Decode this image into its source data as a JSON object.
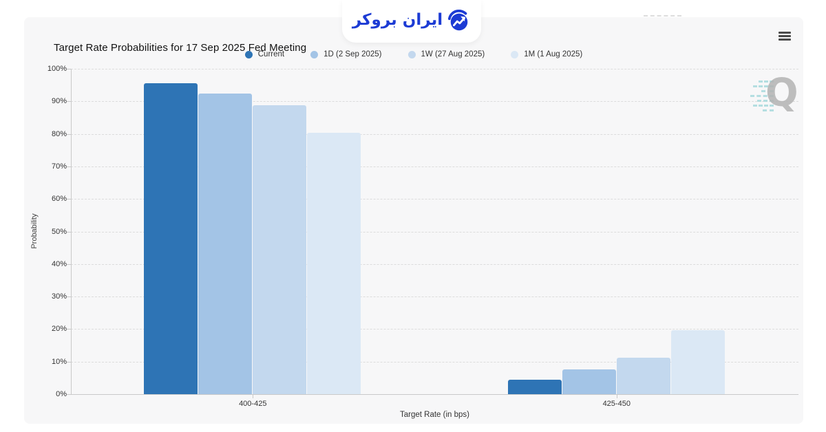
{
  "logo": {
    "text": "ایران بروکر",
    "color": "#1c3bd4"
  },
  "icons": {
    "menu": "hamburger",
    "logo_mark": "circular-trend-arrow",
    "watermark_letter": "Q"
  },
  "watermark": {
    "letter": "Q"
  },
  "colors": {
    "page_bg": "#ffffff",
    "card_bg": "#f7f7f8",
    "grid": "#dcdcdc",
    "axis": "#c9c9c9",
    "title_text": "#111111",
    "label_text": "#333333"
  },
  "chart_data": {
    "type": "bar",
    "title": "Target Rate Probabilities for 17 Sep 2025 Fed Meeting",
    "xlabel": "Target Rate (in bps)",
    "ylabel": "Probability",
    "categories": [
      "400-425",
      "425-450"
    ],
    "series": [
      {
        "name": "Current",
        "color": "#2e74b5",
        "values": [
          95.6,
          4.4
        ]
      },
      {
        "name": "1D (2 Sep 2025)",
        "color": "#a3c4e6",
        "values": [
          92.4,
          7.6
        ]
      },
      {
        "name": "1W (27 Aug 2025)",
        "color": "#c3d8ee",
        "values": [
          88.8,
          11.2
        ]
      },
      {
        "name": "1M (1 Aug 2025)",
        "color": "#dbe8f5",
        "values": [
          80.3,
          19.7
        ]
      }
    ],
    "ylim": [
      0,
      100
    ],
    "ytick_labels": [
      "100%",
      "90%",
      "80%",
      "70%",
      "60%",
      "50%",
      "40%",
      "30%",
      "20%",
      "10%",
      "0%"
    ],
    "grid": true,
    "legend_position": "top"
  }
}
